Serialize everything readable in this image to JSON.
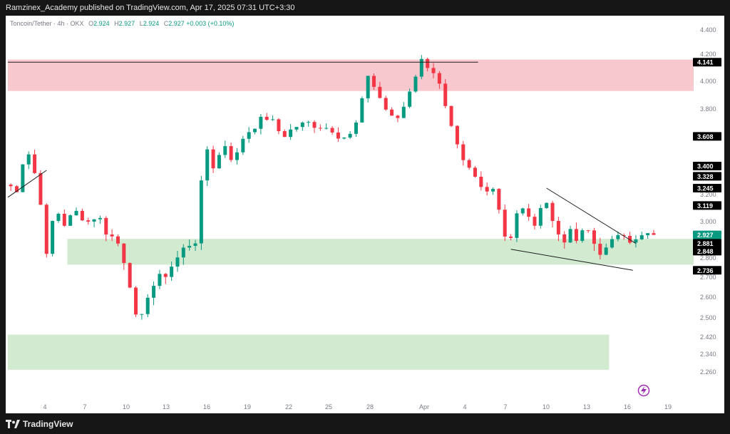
{
  "header": {
    "published_line": "Ramzinex_Academy published on TradingView.com, Apr 17, 2025 07:31 UTC+3:30"
  },
  "legend": {
    "symbol": "Toncoin/Tether · 4h · OKX",
    "open_label": "O",
    "open": "2.924",
    "high_label": "H",
    "high": "2.927",
    "low_label": "L",
    "low": "2.924",
    "close_label": "C",
    "close": "2.927",
    "change": "+0.003 (+0.10%)"
  },
  "footer": {
    "brand": "TradingView",
    "logo_icon": "tradingview-logo-icon"
  },
  "flash_icon": "lightning-icon",
  "chart_data": {
    "type": "candlestick",
    "symbol": "Toncoin/Tether",
    "timeframe": "4h",
    "exchange": "OKX",
    "x_axis_labels": [
      "4",
      "7",
      "10",
      "13",
      "16",
      "19",
      "22",
      "25",
      "28",
      "Apr",
      "4",
      "7",
      "10",
      "13",
      "16",
      "19"
    ],
    "y_axis_ticks": [
      "4.400",
      "4.200",
      "4.000",
      "3.800",
      "3.600",
      "3.400",
      "3.200",
      "3.000",
      "2.800",
      "2.700",
      "2.600",
      "2.500",
      "2.420",
      "2.340",
      "2.260"
    ],
    "y_tick_values": [
      4.4,
      4.2,
      4.0,
      3.8,
      3.6,
      3.4,
      3.2,
      3.0,
      2.8,
      2.7,
      2.6,
      2.5,
      2.42,
      2.34,
      2.26
    ],
    "price_labels": [
      {
        "value": "4.141",
        "style": "dark"
      },
      {
        "value": "3.608",
        "style": "dark"
      },
      {
        "value": "3.400",
        "style": "dark"
      },
      {
        "value": "3.328",
        "style": "dark"
      },
      {
        "value": "3.245",
        "style": "dark"
      },
      {
        "value": "3.119",
        "style": "dark"
      },
      {
        "value": "2.927",
        "style": "current"
      },
      {
        "value": "2.881",
        "style": "dark"
      },
      {
        "value": "2.848",
        "style": "dark"
      },
      {
        "value": "2.736",
        "style": "dark"
      }
    ],
    "zones": [
      {
        "name": "resistance-zone",
        "from": 3.93,
        "to": 4.16,
        "color": "#f7c9cf",
        "start": 0,
        "end": 120
      },
      {
        "name": "support-zone",
        "from": 2.765,
        "to": 2.905,
        "color": "#d1ead0",
        "start": 10,
        "end": 120
      },
      {
        "name": "lower-support-zone",
        "from": 2.27,
        "to": 2.43,
        "color": "#d1ead0",
        "start": 0,
        "end": 101
      }
    ],
    "lines": [
      {
        "name": "resistance-line",
        "x1": 0,
        "y1": 4.141,
        "x2": 79,
        "y2": 4.141
      },
      {
        "name": "downtrend-line-left",
        "x1": 0,
        "y1": 3.18,
        "x2": 6.5,
        "y2": 3.37
      },
      {
        "name": "wedge-upper-line",
        "x1": 90.5,
        "y1": 3.245,
        "x2": 105.5,
        "y2": 2.88
      },
      {
        "name": "wedge-lower-line",
        "x1": 84.5,
        "y1": 2.848,
        "x2": 105,
        "y2": 2.736
      }
    ],
    "key_points": [
      [
        0,
        3.27
      ],
      [
        2,
        3.24
      ],
      [
        3.5,
        3.52
      ],
      [
        4.5,
        3.45
      ],
      [
        6,
        3.15
      ],
      [
        7,
        2.8
      ],
      [
        8.5,
        3.1
      ],
      [
        10,
        2.99
      ],
      [
        12,
        3.07
      ],
      [
        14,
        3.0
      ],
      [
        15.5,
        3.05
      ],
      [
        17,
        2.95
      ],
      [
        19,
        2.88
      ],
      [
        20.5,
        2.75
      ],
      [
        21.5,
        2.6
      ],
      [
        22.5,
        2.38
      ],
      [
        23.5,
        2.6
      ],
      [
        25,
        2.66
      ],
      [
        27,
        2.72
      ],
      [
        29,
        2.8
      ],
      [
        30.5,
        2.87
      ],
      [
        32,
        2.9
      ],
      [
        33,
        3.27
      ],
      [
        34,
        3.52
      ],
      [
        35,
        3.4
      ],
      [
        37,
        3.55
      ],
      [
        38.5,
        3.42
      ],
      [
        40,
        3.6
      ],
      [
        41.5,
        3.67
      ],
      [
        43,
        3.72
      ],
      [
        44.5,
        3.75
      ],
      [
        45.5,
        3.66
      ],
      [
        47,
        3.62
      ],
      [
        49,
        3.68
      ],
      [
        51,
        3.7
      ],
      [
        53,
        3.68
      ],
      [
        55,
        3.66
      ],
      [
        56.5,
        3.6
      ],
      [
        58.5,
        3.62
      ],
      [
        60,
        3.85
      ],
      [
        61,
        4.05
      ],
      [
        62.5,
        3.92
      ],
      [
        64,
        3.8
      ],
      [
        65.5,
        3.7
      ],
      [
        67,
        3.82
      ],
      [
        68.5,
        4.0
      ],
      [
        70,
        4.15
      ],
      [
        71,
        4.12
      ],
      [
        72.5,
        4.05
      ],
      [
        74,
        3.8
      ],
      [
        75.5,
        3.58
      ],
      [
        77,
        3.42
      ],
      [
        78.5,
        3.35
      ],
      [
        80,
        3.25
      ],
      [
        82,
        3.25
      ],
      [
        83.5,
        3.02
      ],
      [
        84.5,
        2.85
      ],
      [
        86,
        3.05
      ],
      [
        87.5,
        3.1
      ],
      [
        89,
        2.95
      ],
      [
        90.5,
        3.22
      ],
      [
        92,
        3.0
      ],
      [
        93.5,
        2.9
      ],
      [
        95,
        2.93
      ],
      [
        96.5,
        2.88
      ],
      [
        97.5,
        2.98
      ],
      [
        99,
        2.88
      ],
      [
        100.5,
        2.82
      ],
      [
        102,
        2.88
      ],
      [
        103.5,
        2.97
      ],
      [
        104.5,
        2.93
      ],
      [
        105.5,
        2.88
      ],
      [
        106.5,
        2.9
      ],
      [
        107.5,
        2.927
      ]
    ],
    "last_price": 2.927,
    "colors": {
      "up": "#089981",
      "down": "#f23645",
      "text": "#787b86",
      "grid": "#ffffff"
    }
  }
}
